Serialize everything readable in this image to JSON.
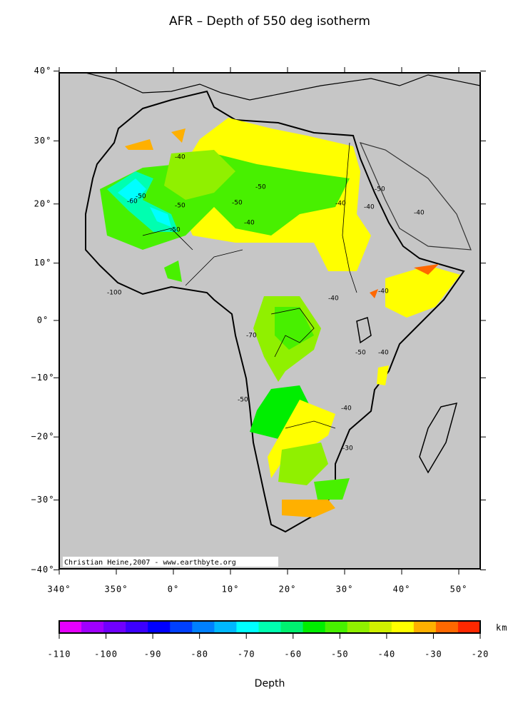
{
  "title": "AFR – Depth of 550 deg isotherm",
  "map": {
    "lat_ticks": [
      {
        "value": 40,
        "label": "40°"
      },
      {
        "value": 30,
        "label": "30°"
      },
      {
        "value": 20,
        "label": "20°"
      },
      {
        "value": 10,
        "label": "10°"
      },
      {
        "value": 0,
        "label": "0°"
      },
      {
        "value": -10,
        "label": "−10°"
      },
      {
        "value": -20,
        "label": "−20°"
      },
      {
        "value": -30,
        "label": "−30°"
      },
      {
        "value": -40,
        "label": "−40°"
      }
    ],
    "lon_ticks": [
      {
        "value": 340,
        "label": "340°"
      },
      {
        "value": 350,
        "label": "350°"
      },
      {
        "value": 0,
        "label": "0°"
      },
      {
        "value": 10,
        "label": "10°"
      },
      {
        "value": 20,
        "label": "20°"
      },
      {
        "value": 30,
        "label": "30°"
      },
      {
        "value": 40,
        "label": "40°"
      },
      {
        "value": 50,
        "label": "50°"
      }
    ],
    "credit": "Christian Heine,2007 - www.earthbyte.org",
    "contour_labels": [
      "-40",
      "-50",
      "-60",
      "-50",
      "-50",
      "-50",
      "-40",
      "-50",
      "-40",
      "-40",
      "-50",
      "-40",
      "-100",
      "-40",
      "-40",
      "-70",
      "-50",
      "-40",
      "-50",
      "-30",
      "-40"
    ]
  },
  "colorbar": {
    "lim": [
      -110,
      -20
    ],
    "ticks": [
      -110,
      -100,
      -90,
      -80,
      -70,
      -60,
      -50,
      -40,
      -30,
      -20
    ],
    "unit": "km",
    "label": "Depth",
    "colors": [
      "#e600ff",
      "#a000ff",
      "#7000ff",
      "#3c00ff",
      "#0000ff",
      "#0040ff",
      "#0080ff",
      "#00b8ff",
      "#00ffff",
      "#00ffb0",
      "#00f070",
      "#00ee00",
      "#48f000",
      "#90f000",
      "#d0f000",
      "#ffff00",
      "#ffb000",
      "#ff6800",
      "#ff2800"
    ]
  }
}
